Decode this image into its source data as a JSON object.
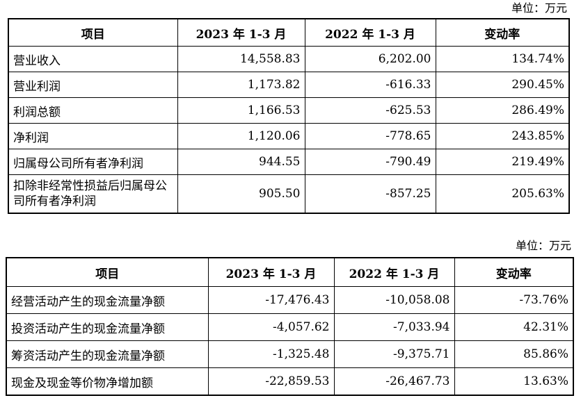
{
  "table1": {
    "unit": "单位：万元",
    "headers": [
      "项目",
      "2023 年 1-3 月",
      "2022 年 1-3 月",
      "变动率"
    ],
    "rows": [
      {
        "item": "营业收入",
        "y2023": "14,558.83",
        "y2022": "6,202.00",
        "change": "134.74%"
      },
      {
        "item": "营业利润",
        "y2023": "1,173.82",
        "y2022": "-616.33",
        "change": "290.45%"
      },
      {
        "item": "利润总额",
        "y2023": "1,166.53",
        "y2022": "-625.53",
        "change": "286.49%"
      },
      {
        "item": "净利润",
        "y2023": "1,120.06",
        "y2022": "-778.65",
        "change": "243.85%"
      },
      {
        "item": "归属母公司所有者净利润",
        "y2023": "944.55",
        "y2022": "-790.49",
        "change": "219.49%"
      },
      {
        "item": "扣除非经常性损益后归属母公司所有者净利润",
        "y2023": "905.50",
        "y2022": "-857.25",
        "change": "205.63%"
      }
    ]
  },
  "table2": {
    "unit": "单位：万元",
    "headers": [
      "项目",
      "2023 年 1-3 月",
      "2022 年 1-3 月",
      "变动率"
    ],
    "rows": [
      {
        "item": "经营活动产生的现金流量净额",
        "y2023": "-17,476.43",
        "y2022": "-10,058.08",
        "change": "-73.76%"
      },
      {
        "item": "投资活动产生的现金流量净额",
        "y2023": "-4,057.62",
        "y2022": "-7,033.94",
        "change": "42.31%"
      },
      {
        "item": "筹资活动产生的现金流量净额",
        "y2023": "-1,325.48",
        "y2022": "-9,375.71",
        "change": "85.86%"
      },
      {
        "item": "现金及现金等价物净增加额",
        "y2023": "-22,859.53",
        "y2022": "-26,467.73",
        "change": "13.63%"
      }
    ]
  }
}
